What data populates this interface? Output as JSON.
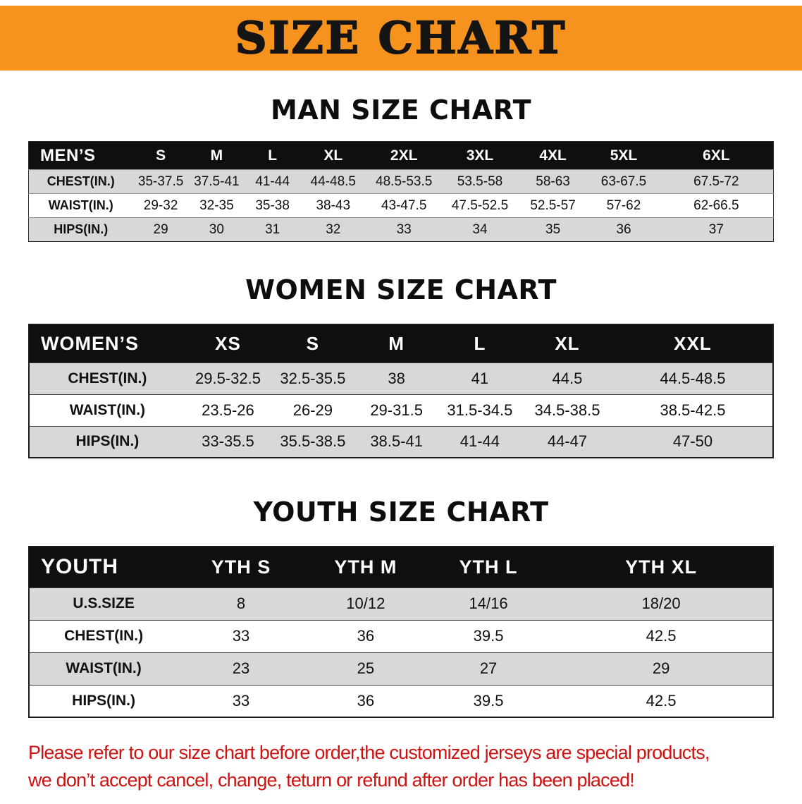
{
  "banner": {
    "title": "SIZE CHART"
  },
  "colors": {
    "banner_orange": "#f6921e",
    "header_black": "#0f0f0f",
    "row_gray": "#d8d8d8",
    "disclaimer_red": "#cf1212"
  },
  "sections": [
    {
      "heading": "MAN SIZE CHART",
      "table": {
        "header": [
          "MEN’S",
          "S",
          "M",
          "L",
          "XL",
          "2XL",
          "3XL",
          "4XL",
          "5XL",
          "6XL"
        ],
        "rows": [
          [
            "CHEST(IN.)",
            "35-37.5",
            "37.5-41",
            "41-44",
            "44-48.5",
            "48.5-53.5",
            "53.5-58",
            "58-63",
            "63-67.5",
            "67.5-72"
          ],
          [
            "WAIST(IN.)",
            "29-32",
            "32-35",
            "35-38",
            "38-43",
            "43-47.5",
            "47.5-52.5",
            "52.5-57",
            "57-62",
            "62-66.5"
          ],
          [
            "HIPS(IN.)",
            "29",
            "30",
            "31",
            "32",
            "33",
            "34",
            "35",
            "36",
            "37"
          ]
        ]
      }
    },
    {
      "heading": "WOMEN SIZE CHART",
      "table": {
        "header": [
          "WOMEN’S",
          "XS",
          "S",
          "M",
          "L",
          "XL",
          "XXL"
        ],
        "rows": [
          [
            "CHEST(IN.)",
            "29.5-32.5",
            "32.5-35.5",
            "38",
            "41",
            "44.5",
            "44.5-48.5"
          ],
          [
            "WAIST(IN.)",
            "23.5-26",
            "26-29",
            "29-31.5",
            "31.5-34.5",
            "34.5-38.5",
            "38.5-42.5"
          ],
          [
            "HIPS(IN.)",
            "33-35.5",
            "35.5-38.5",
            "38.5-41",
            "41-44",
            "44-47",
            "47-50"
          ]
        ]
      }
    },
    {
      "heading": "YOUTH SIZE CHART",
      "table": {
        "header": [
          "YOUTH",
          "YTH S",
          "YTH M",
          "YTH L",
          "YTH XL"
        ],
        "rows": [
          [
            "U.S.SIZE",
            "8",
            "10/12",
            "14/16",
            "18/20"
          ],
          [
            "CHEST(IN.)",
            "33",
            "36",
            "39.5",
            "42.5"
          ],
          [
            "WAIST(IN.)",
            "23",
            "25",
            "27",
            "29"
          ],
          [
            "HIPS(IN.)",
            "33",
            "36",
            "39.5",
            "42.5"
          ]
        ]
      }
    }
  ],
  "disclaimer": {
    "lines": [
      "Please refer to our size chart before order,the customized jerseys are special products,",
      "we don’t accept cancel, change, teturn or refund after order has been placed!"
    ]
  }
}
